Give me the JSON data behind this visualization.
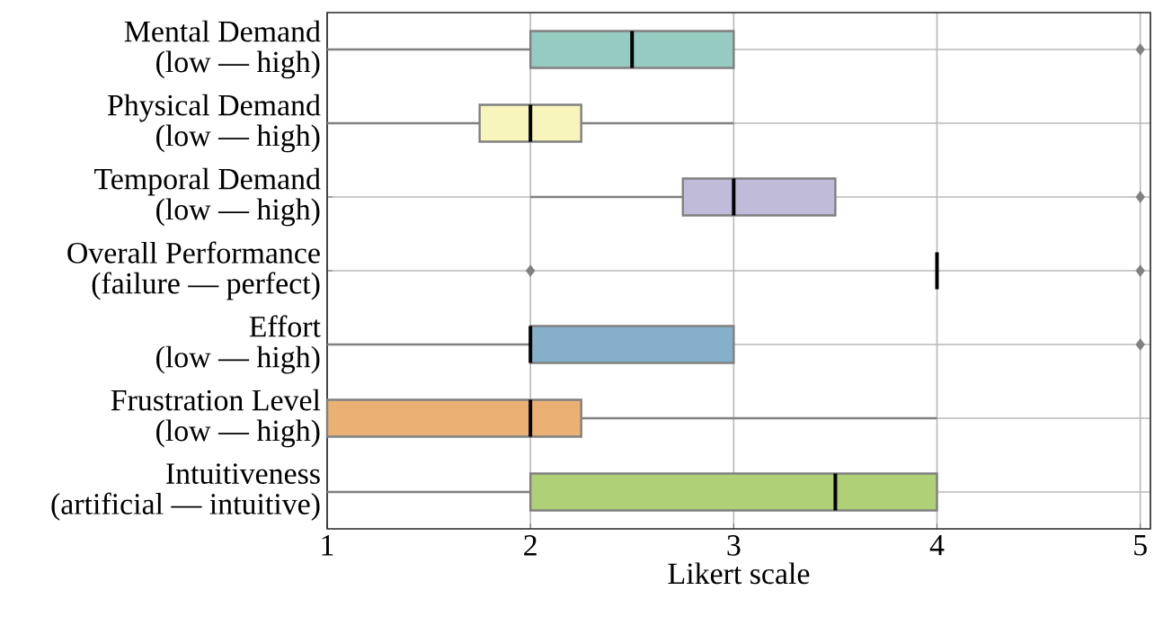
{
  "chart_data": {
    "type": "box",
    "orientation": "horizontal",
    "xlabel": "Likert scale",
    "categories": [
      "Mental Demand\n(low — high)",
      "Physical Demand\n(low — high)",
      "Temporal Demand\n(low — high)",
      "Overall Performance\n(failure — perfect)",
      "Effort\n(low — high)",
      "Frustration Level\n(low — high)",
      "Intuitiveness\n(artificial — intuitive)"
    ],
    "boxes": [
      {
        "low": 1,
        "q1": 2,
        "median": 2.5,
        "q3": 3,
        "high": 3,
        "outliers": [
          5
        ]
      },
      {
        "low": 1,
        "q1": 1.75,
        "median": 2,
        "q3": 2.25,
        "high": 3
      },
      {
        "low": 2,
        "q1": 2.75,
        "median": 3,
        "q3": 3.5,
        "high": 3.5,
        "outliers": [
          5
        ]
      },
      {
        "low": 4,
        "q1": 4,
        "median": 4,
        "q3": 4,
        "high": 4,
        "outliers": [
          2,
          5
        ]
      },
      {
        "low": 1,
        "q1": 2,
        "median": 2,
        "q3": 3,
        "high": 3,
        "outliers": [
          5
        ]
      },
      {
        "low": 1,
        "q1": 1,
        "median": 2,
        "q3": 2.25,
        "high": 4
      },
      {
        "low": 1,
        "q1": 2,
        "median": 3.5,
        "q3": 4,
        "high": 4
      }
    ],
    "colors": [
      "#96cbc1",
      "#f7f5bb",
      "#bfbbd9",
      "#808080",
      "#86afcb",
      "#ebb174",
      "#b0d078"
    ],
    "xlim": [
      1,
      5.05
    ],
    "xticks": [
      1,
      2,
      3,
      4,
      5
    ],
    "grid": true
  }
}
